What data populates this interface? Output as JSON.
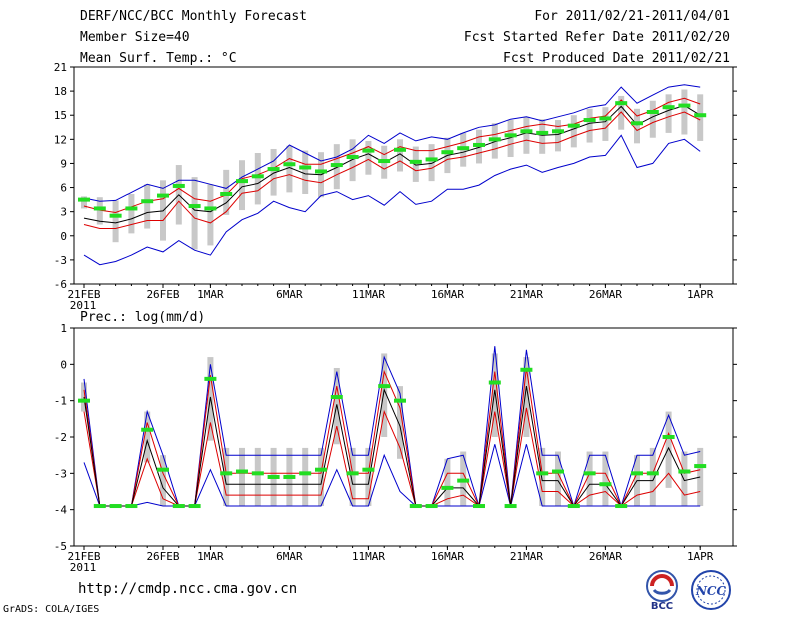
{
  "header": {
    "title": "DERF/NCC/BCC Monthly Forecast",
    "member_size": "Member Size=40",
    "variable": "Mean Surf. Temp.: °C",
    "period": "For 2011/02/21-2011/04/01",
    "started": "Fcst Started Refer Date 2011/02/20",
    "produced": "Fcst Produced Date 2011/02/21"
  },
  "footer": {
    "url": "http://cmdp.ncc.cma.gov.cn",
    "credit": "GrADS: COLA/IGES",
    "logo_left_text": "BCC",
    "logo_right_text": "NCC"
  },
  "colors": {
    "envelope": "#0000cc",
    "spread": "#dd0000",
    "median": "#000000",
    "box": "#c8c8c8",
    "marker": "#22dd22"
  },
  "chart_data": [
    {
      "type": "line",
      "title": "Mean Surf. Temp.: °C",
      "x_tick_labels": [
        "21FEB",
        "26FEB",
        "1MAR",
        "6MAR",
        "11MAR",
        "16MAR",
        "21MAR",
        "26MAR",
        "1APR"
      ],
      "x_tick_day_index": [
        0,
        5,
        8,
        13,
        18,
        23,
        28,
        33,
        39
      ],
      "year_label": "2011",
      "ylim": [
        -6,
        21
      ],
      "yticks": [
        -6,
        -3,
        0,
        3,
        6,
        9,
        12,
        15,
        18,
        21
      ],
      "series": [
        {
          "name": "max",
          "values": [
            4.7,
            4.3,
            4.4,
            5.4,
            6.4,
            5.9,
            6.9,
            6.9,
            6.4,
            5.9,
            7.3,
            8.3,
            9.3,
            11.3,
            10.3,
            9.3,
            9.8,
            10.8,
            12.5,
            11.5,
            12.8,
            11.8,
            12.3,
            12.0,
            12.8,
            13.5,
            13.8,
            14.5,
            14.8,
            14.3,
            14.8,
            15.3,
            16.0,
            16.3,
            18.5,
            16.5,
            17.5,
            18.5,
            18.8,
            18.5
          ]
        },
        {
          "name": "upper",
          "values": [
            3.7,
            3.2,
            2.9,
            3.6,
            4.3,
            4.6,
            5.9,
            4.6,
            4.3,
            5.1,
            7.1,
            7.6,
            8.4,
            9.6,
            8.9,
            8.9,
            9.6,
            10.3,
            11.1,
            10.1,
            11.1,
            10.6,
            10.6,
            11.1,
            11.6,
            12.3,
            12.6,
            13.1,
            13.6,
            13.9,
            13.6,
            13.9,
            14.6,
            14.9,
            16.9,
            14.9,
            15.6,
            16.6,
            17.1,
            16.4
          ]
        },
        {
          "name": "median",
          "values": [
            2.2,
            1.8,
            1.6,
            2.1,
            2.9,
            3.1,
            5.1,
            3.2,
            3.0,
            4.1,
            6.1,
            6.5,
            7.8,
            8.5,
            7.7,
            7.6,
            8.5,
            9.5,
            10.2,
            9.1,
            10.2,
            8.8,
            9.0,
            10.0,
            10.4,
            11.0,
            11.7,
            12.2,
            12.8,
            12.5,
            12.6,
            13.3,
            14.0,
            14.2,
            16.1,
            13.8,
            14.8,
            15.6,
            16.2,
            15.0
          ]
        },
        {
          "name": "lower",
          "values": [
            1.4,
            0.9,
            0.9,
            1.4,
            1.9,
            1.9,
            4.3,
            2.2,
            1.6,
            3.0,
            5.3,
            5.6,
            7.1,
            7.6,
            6.9,
            6.6,
            7.6,
            8.5,
            9.5,
            8.3,
            9.3,
            8.1,
            8.4,
            9.5,
            9.8,
            10.3,
            10.8,
            11.4,
            11.9,
            11.5,
            11.6,
            12.4,
            13.1,
            13.4,
            15.4,
            13.1,
            14.1,
            14.8,
            15.4,
            14.4
          ]
        },
        {
          "name": "min",
          "values": [
            -2.4,
            -3.6,
            -3.2,
            -2.4,
            -1.4,
            -2.0,
            -0.6,
            -1.8,
            -2.4,
            0.5,
            2.0,
            2.8,
            4.3,
            3.5,
            3.0,
            5.0,
            5.5,
            4.5,
            5.0,
            3.8,
            5.5,
            3.9,
            4.3,
            5.8,
            5.8,
            6.3,
            7.5,
            8.3,
            8.8,
            7.9,
            8.5,
            9.0,
            9.8,
            10.0,
            12.5,
            8.5,
            9.0,
            11.5,
            12.0,
            10.5
          ]
        },
        {
          "name": "box_top",
          "values": [
            4.9,
            4.8,
            4.4,
            5.2,
            6.4,
            6.9,
            8.8,
            7.3,
            6.4,
            8.2,
            9.4,
            10.3,
            10.8,
            11.2,
            10.6,
            10.4,
            11.4,
            12.0,
            11.8,
            11.2,
            12.0,
            11.1,
            11.4,
            12.2,
            12.8,
            13.2,
            14.0,
            14.4,
            14.8,
            14.5,
            14.4,
            15.0,
            15.8,
            16.0,
            17.4,
            15.8,
            16.8,
            17.6,
            18.2,
            17.6
          ]
        },
        {
          "name": "box_bottom",
          "values": [
            3.4,
            1.4,
            -0.8,
            0.3,
            0.9,
            -0.6,
            1.4,
            -1.7,
            -1.2,
            2.6,
            3.2,
            3.9,
            5.0,
            5.4,
            5.2,
            4.8,
            5.8,
            6.8,
            7.6,
            7.1,
            8.0,
            6.7,
            6.8,
            7.8,
            8.6,
            9.0,
            9.6,
            9.8,
            10.2,
            10.2,
            10.5,
            11.0,
            11.6,
            11.8,
            13.2,
            11.5,
            12.2,
            12.8,
            12.6,
            11.8
          ]
        },
        {
          "name": "ensemble_marker",
          "values": [
            4.5,
            3.4,
            2.5,
            3.4,
            4.3,
            5.0,
            6.2,
            3.7,
            3.4,
            5.2,
            6.8,
            7.4,
            8.3,
            8.9,
            8.5,
            8.0,
            8.8,
            9.8,
            10.6,
            9.3,
            10.7,
            9.2,
            9.5,
            10.4,
            10.9,
            11.3,
            12.0,
            12.5,
            13.0,
            12.8,
            13.0,
            13.7,
            14.4,
            14.6,
            16.5,
            14.0,
            15.4,
            16.0,
            16.2,
            15.0
          ]
        }
      ]
    },
    {
      "type": "line",
      "title": "Prec.: log(mm/d)",
      "x_tick_labels": [
        "21FEB",
        "26FEB",
        "1MAR",
        "6MAR",
        "11MAR",
        "16MAR",
        "21MAR",
        "26MAR",
        "1APR"
      ],
      "x_tick_day_index": [
        0,
        5,
        8,
        13,
        18,
        23,
        28,
        33,
        39
      ],
      "year_label": "2011",
      "ylim": [
        -5,
        1
      ],
      "yticks": [
        -5,
        -4,
        -3,
        -2,
        -1,
        0,
        1
      ],
      "series": [
        {
          "name": "max",
          "values": [
            -0.4,
            -3.9,
            -3.9,
            -3.9,
            -1.3,
            -2.5,
            -3.9,
            -3.9,
            0.0,
            -2.5,
            -2.5,
            -2.5,
            -2.5,
            -2.5,
            -2.5,
            -2.5,
            -0.2,
            -2.5,
            -2.5,
            0.2,
            -0.8,
            -3.9,
            -3.9,
            -2.6,
            -2.5,
            -3.9,
            0.5,
            -3.9,
            0.4,
            -2.5,
            -2.5,
            -3.9,
            -2.5,
            -2.5,
            -3.9,
            -2.5,
            -2.5,
            -1.4,
            -2.5,
            -2.4
          ]
        },
        {
          "name": "upper",
          "values": [
            -0.7,
            -3.9,
            -3.9,
            -3.9,
            -1.6,
            -3.0,
            -3.9,
            -3.9,
            -0.3,
            -3.0,
            -3.0,
            -3.0,
            -3.0,
            -3.0,
            -3.0,
            -3.0,
            -0.6,
            -3.0,
            -3.0,
            -0.2,
            -1.2,
            -3.9,
            -3.9,
            -3.0,
            -3.0,
            -3.9,
            -0.2,
            -3.9,
            -0.1,
            -3.0,
            -3.0,
            -3.9,
            -3.0,
            -3.0,
            -3.9,
            -3.0,
            -3.0,
            -1.9,
            -3.0,
            -2.9
          ]
        },
        {
          "name": "median",
          "values": [
            -0.9,
            -3.9,
            -3.9,
            -3.9,
            -2.1,
            -3.4,
            -3.9,
            -3.9,
            -0.9,
            -3.3,
            -3.3,
            -3.3,
            -3.3,
            -3.3,
            -3.3,
            -3.3,
            -1.1,
            -3.3,
            -3.3,
            -0.7,
            -1.7,
            -3.9,
            -3.9,
            -3.4,
            -3.4,
            -3.9,
            -0.7,
            -3.9,
            -0.6,
            -3.2,
            -3.2,
            -3.9,
            -3.3,
            -3.3,
            -3.9,
            -3.2,
            -3.2,
            -2.3,
            -3.2,
            -3.1
          ]
        },
        {
          "name": "lower",
          "values": [
            -1.3,
            -3.9,
            -3.9,
            -3.9,
            -2.6,
            -3.7,
            -3.9,
            -3.9,
            -1.6,
            -3.6,
            -3.6,
            -3.6,
            -3.6,
            -3.6,
            -3.6,
            -3.6,
            -1.7,
            -3.7,
            -3.7,
            -1.3,
            -2.3,
            -3.9,
            -3.9,
            -3.7,
            -3.6,
            -3.9,
            -1.3,
            -3.9,
            -1.2,
            -3.5,
            -3.5,
            -3.9,
            -3.6,
            -3.5,
            -3.9,
            -3.6,
            -3.5,
            -3.0,
            -3.6,
            -3.5
          ]
        },
        {
          "name": "min",
          "values": [
            -2.7,
            -3.9,
            -3.9,
            -3.9,
            -3.8,
            -3.9,
            -3.9,
            -3.9,
            -2.9,
            -3.9,
            -3.9,
            -3.9,
            -3.9,
            -3.9,
            -3.9,
            -3.9,
            -2.9,
            -3.9,
            -3.9,
            -2.5,
            -3.5,
            -3.9,
            -3.9,
            -3.9,
            -3.9,
            -3.9,
            -2.2,
            -3.9,
            -2.2,
            -3.9,
            -3.9,
            -3.9,
            -3.9,
            -3.9,
            -3.9,
            -3.9,
            -3.9,
            -3.9,
            -3.9,
            -3.9
          ]
        },
        {
          "name": "box_top",
          "values": [
            -0.5,
            -3.9,
            -3.9,
            -3.9,
            -1.3,
            -2.5,
            -3.9,
            -3.9,
            0.2,
            -2.3,
            -2.3,
            -2.3,
            -2.3,
            -2.3,
            -2.3,
            -2.3,
            -0.1,
            -2.3,
            -2.3,
            0.3,
            -0.6,
            -3.9,
            -3.9,
            -2.6,
            -2.4,
            -3.9,
            0.3,
            -3.9,
            0.2,
            -2.3,
            -2.4,
            -3.9,
            -2.4,
            -2.4,
            -3.9,
            -2.5,
            -2.3,
            -1.3,
            -2.4,
            -2.3
          ]
        },
        {
          "name": "box_bottom",
          "values": [
            -1.3,
            -3.9,
            -3.9,
            -3.9,
            -2.7,
            -3.9,
            -3.9,
            -3.9,
            -2.1,
            -3.9,
            -3.9,
            -3.9,
            -3.9,
            -3.9,
            -3.9,
            -3.9,
            -2.2,
            -3.9,
            -3.9,
            -2.0,
            -2.6,
            -3.9,
            -3.9,
            -3.9,
            -3.9,
            -3.9,
            -2.0,
            -3.9,
            -2.0,
            -3.9,
            -3.9,
            -3.9,
            -3.9,
            -3.9,
            -3.9,
            -3.9,
            -3.9,
            -3.4,
            -3.9,
            -3.9
          ]
        },
        {
          "name": "ensemble_marker",
          "values": [
            -1.0,
            -3.9,
            -3.9,
            -3.9,
            -1.8,
            -2.9,
            -3.9,
            -3.9,
            -0.4,
            -3.0,
            -2.95,
            -3.0,
            -3.1,
            -3.1,
            -3.0,
            -2.9,
            -0.9,
            -3.0,
            -2.9,
            -0.6,
            -1.0,
            -3.9,
            -3.9,
            -3.4,
            -3.2,
            -3.9,
            -0.5,
            -3.9,
            -0.15,
            -3.0,
            -2.95,
            -3.9,
            -3.0,
            -3.3,
            -3.9,
            -3.0,
            -3.0,
            -2.0,
            -2.95,
            -2.8
          ]
        }
      ]
    }
  ]
}
